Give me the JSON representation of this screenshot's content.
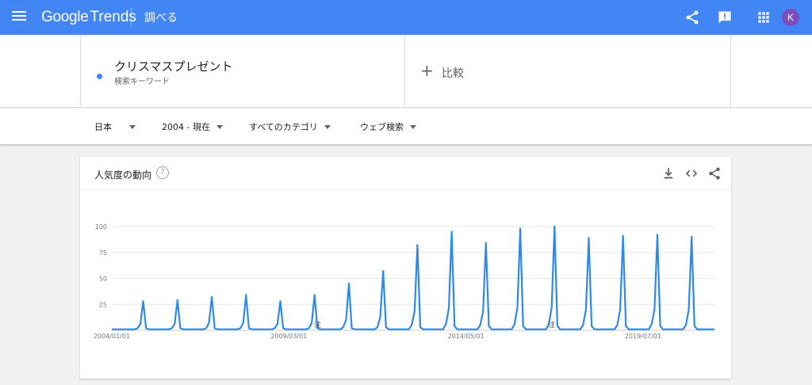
{
  "header": {
    "logo_google": "Google",
    "logo_trends": "Trends",
    "page_label": "調べる",
    "avatar_letter": "K",
    "icons": [
      "menu-icon",
      "share-icon",
      "feedback-icon",
      "apps-icon"
    ]
  },
  "search": {
    "term": "クリスマスプレゼント",
    "term_type": "検索キーワード",
    "term_color": "#4285f4",
    "compare_symbol": "+",
    "compare_label": "比較"
  },
  "filters": [
    {
      "label": "日本"
    },
    {
      "label": "2004 - 現在"
    },
    {
      "label": "すべてのカテゴリ"
    },
    {
      "label": "ウェブ検索"
    }
  ],
  "card": {
    "title": "人気度の動向",
    "help_symbol": "?",
    "icons": [
      "download-icon",
      "embed-icon",
      "share-icon"
    ]
  },
  "colors": {
    "brand_blue": "#4285f4",
    "series_blue": "#2e8ae6",
    "avatar": "#7c4dbe"
  },
  "chart_data": {
    "type": "line",
    "title": "",
    "xlabel": "",
    "ylabel": "",
    "ylim": [
      0,
      100
    ],
    "yticks": [
      25,
      50,
      75,
      100
    ],
    "grid": true,
    "x_tick_labels": [
      "2004/01/01",
      "2009/03/01",
      "2014/05/01",
      "2019/07/01"
    ],
    "x_range": [
      "2004/01",
      "2021/08"
    ],
    "annotation_marker": "注",
    "annotations": [
      "2010/01",
      "2016/11"
    ],
    "series": [
      {
        "values_description": "monthly, peaks each December",
        "peaks": [
          {
            "date": "2004/12",
            "value": 28
          },
          {
            "date": "2005/12",
            "value": 29
          },
          {
            "date": "2006/12",
            "value": 32
          },
          {
            "date": "2007/12",
            "value": 34
          },
          {
            "date": "2008/12",
            "value": 28
          },
          {
            "date": "2009/12",
            "value": 34
          },
          {
            "date": "2010/12",
            "value": 45
          },
          {
            "date": "2011/12",
            "value": 57
          },
          {
            "date": "2012/12",
            "value": 82
          },
          {
            "date": "2013/12",
            "value": 95
          },
          {
            "date": "2014/12",
            "value": 84
          },
          {
            "date": "2015/12",
            "value": 98
          },
          {
            "date": "2016/12",
            "value": 100
          },
          {
            "date": "2017/12",
            "value": 89
          },
          {
            "date": "2018/12",
            "value": 91
          },
          {
            "date": "2019/12",
            "value": 92
          },
          {
            "date": "2020/12",
            "value": 90
          }
        ],
        "baseline": 1
      }
    ]
  }
}
